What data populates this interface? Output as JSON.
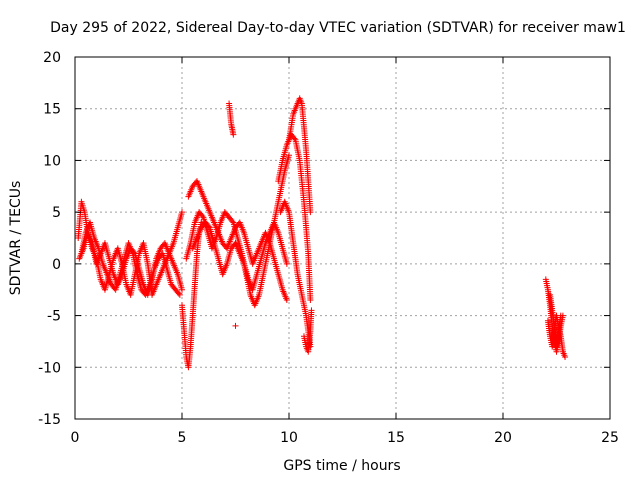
{
  "chart_data": {
    "type": "scatter",
    "title": "Day 295 of 2022, Sidereal Day-to-day VTEC variation (SDTVAR) for receiver maw1",
    "xlabel": "GPS time / hours",
    "ylabel": "SDTVAR / TECUs",
    "xlim": [
      0,
      25
    ],
    "ylim": [
      -15,
      20
    ],
    "xticks": [
      0,
      5,
      10,
      15,
      20,
      25
    ],
    "yticks": [
      -15,
      -10,
      -5,
      0,
      5,
      10,
      15,
      20
    ],
    "xtick_labels": [
      "0",
      "5",
      "10",
      "15",
      "20",
      "25"
    ],
    "ytick_labels": [
      "-15",
      "-10",
      "-5",
      "0",
      "5",
      "10",
      "15",
      "20"
    ],
    "grid": true,
    "marker": "+",
    "color": "#ff0000",
    "series": [
      {
        "name": "maw1",
        "segments": [
          {
            "x": [
              0.15,
              0.3,
              0.45,
              0.6,
              0.8,
              1.0,
              1.2,
              1.4,
              1.6,
              1.8,
              2.0,
              2.2,
              2.4,
              2.6,
              2.8,
              3.0,
              3.2,
              3.4,
              3.6,
              3.8,
              4.0,
              4.2,
              4.4,
              4.6,
              4.8,
              5.0
            ],
            "y": [
              2.5,
              6.0,
              5.0,
              3.0,
              1.5,
              0.5,
              -1.5,
              -2.5,
              -1.0,
              0.5,
              1.5,
              0.0,
              -2.0,
              -3.0,
              -1.0,
              1.0,
              2.0,
              0.0,
              -3.0,
              -2.0,
              -1.0,
              0.0,
              1.0,
              2.0,
              3.5,
              5.0
            ]
          },
          {
            "x": [
              0.2,
              0.4,
              0.6,
              0.8,
              1.0,
              1.2,
              1.4,
              1.6,
              1.8,
              2.0,
              2.2,
              2.4,
              2.6,
              2.8,
              3.0,
              3.2,
              3.4,
              3.6,
              3.8,
              4.0,
              4.2,
              4.4,
              4.6,
              4.8,
              5.0
            ],
            "y": [
              0.5,
              1.5,
              3.0,
              2.0,
              0.0,
              1.0,
              2.0,
              0.5,
              -1.0,
              -2.0,
              -1.0,
              0.5,
              1.5,
              1.0,
              -0.5,
              -2.0,
              -3.0,
              -1.5,
              0.5,
              1.5,
              2.0,
              1.0,
              0.0,
              -1.0,
              -2.5
            ]
          },
          {
            "x": [
              0.3,
              0.5,
              0.7,
              0.9,
              1.1,
              1.3,
              1.5,
              1.7,
              1.9,
              2.1,
              2.3,
              2.5,
              2.7,
              2.9,
              3.1,
              3.3,
              3.5,
              3.7,
              3.9,
              4.1,
              4.3,
              4.5,
              4.7,
              4.9
            ],
            "y": [
              1.0,
              3.0,
              4.0,
              2.5,
              1.5,
              0.0,
              -1.0,
              -2.0,
              -2.5,
              -1.0,
              0.5,
              2.0,
              1.0,
              -1.0,
              -2.5,
              -3.0,
              -2.0,
              -0.5,
              0.5,
              1.0,
              -0.5,
              -2.0,
              -2.5,
              -3.0
            ]
          },
          {
            "x": [
              5.0,
              5.1,
              5.2,
              5.3,
              5.4,
              5.5,
              5.6,
              5.7,
              5.8,
              5.9
            ],
            "y": [
              -4.0,
              -6.5,
              -9.0,
              -10.0,
              -8.0,
              -5.0,
              -2.0,
              1.0,
              3.0,
              4.0
            ]
          },
          {
            "x": [
              5.2,
              5.4,
              5.6,
              5.8,
              6.0,
              6.2,
              6.4,
              6.6,
              6.8,
              7.0,
              7.2,
              7.4,
              7.6,
              7.8,
              8.0,
              8.2,
              8.4,
              8.6,
              8.8,
              9.0,
              9.2,
              9.4,
              9.6,
              9.8,
              10.0
            ],
            "y": [
              0.5,
              2.0,
              4.0,
              5.0,
              4.5,
              3.0,
              1.5,
              2.5,
              4.0,
              5.0,
              4.5,
              4.0,
              2.5,
              1.0,
              -1.0,
              -3.0,
              -4.0,
              -3.0,
              -1.0,
              1.0,
              3.0,
              5.0,
              7.0,
              9.0,
              10.5
            ]
          },
          {
            "x": [
              5.3,
              5.5,
              5.7,
              5.9,
              6.1,
              6.3,
              6.5,
              6.7,
              6.9,
              7.1,
              7.3,
              7.5,
              7.7,
              7.9,
              8.1,
              8.3,
              8.5,
              8.7,
              8.9,
              9.1,
              9.3,
              9.5,
              9.7,
              9.9
            ],
            "y": [
              6.5,
              7.5,
              8.0,
              7.0,
              6.0,
              5.0,
              4.0,
              3.0,
              2.0,
              1.5,
              2.5,
              3.5,
              4.0,
              3.0,
              1.5,
              0.0,
              1.0,
              2.0,
              3.0,
              2.0,
              0.5,
              -1.0,
              -2.5,
              -3.5
            ]
          },
          {
            "x": [
              5.5,
              5.7,
              5.9,
              6.1,
              6.3,
              6.5,
              6.7,
              6.9,
              7.1,
              7.3,
              7.5,
              7.7,
              7.9,
              8.1,
              8.3,
              8.5,
              8.7,
              8.9,
              9.1,
              9.3,
              9.5,
              9.7,
              9.9
            ],
            "y": [
              1.5,
              2.5,
              3.5,
              4.0,
              3.5,
              2.0,
              0.5,
              -1.0,
              0.0,
              1.5,
              2.0,
              1.0,
              0.0,
              -1.5,
              -2.5,
              -1.0,
              0.5,
              2.0,
              3.0,
              4.0,
              3.0,
              1.5,
              0.0
            ]
          },
          {
            "x": [
              7.2,
              7.25,
              7.3,
              7.35,
              7.4
            ],
            "y": [
              15.5,
              14.5,
              13.5,
              13.0,
              12.5
            ]
          },
          {
            "x": [
              7.5
            ],
            "y": [
              -6.0
            ]
          },
          {
            "x": [
              9.5,
              9.7,
              9.9,
              10.1,
              10.3,
              10.5,
              10.7,
              10.9,
              11.0
            ],
            "y": [
              8.0,
              10.0,
              11.5,
              12.5,
              12.0,
              10.0,
              6.0,
              1.0,
              -3.5
            ]
          },
          {
            "x": [
              9.6,
              9.8,
              10.0,
              10.2,
              10.4,
              10.6,
              10.8,
              11.0
            ],
            "y": [
              5.0,
              6.0,
              5.0,
              2.0,
              -1.0,
              -3.0,
              -5.0,
              -8.0
            ]
          },
          {
            "x": [
              10.0,
              10.2,
              10.4,
              10.5,
              10.6,
              10.8,
              11.0
            ],
            "y": [
              12.0,
              14.5,
              15.5,
              16.0,
              15.5,
              11.0,
              5.0
            ]
          },
          {
            "x": [
              10.7,
              10.8,
              10.9,
              11.0,
              11.05
            ],
            "y": [
              -7.0,
              -8.0,
              -8.5,
              -6.5,
              -4.5
            ]
          },
          {
            "x": [
              22.0,
              22.1,
              22.2,
              22.3,
              22.4,
              22.5,
              22.6,
              22.7,
              22.8
            ],
            "y": [
              -1.5,
              -2.5,
              -4.0,
              -6.0,
              -7.5,
              -8.5,
              -7.5,
              -6.0,
              -5.0
            ]
          },
          {
            "x": [
              22.1,
              22.2,
              22.3,
              22.4,
              22.5,
              22.6,
              22.7,
              22.8,
              22.9
            ],
            "y": [
              -5.5,
              -7.0,
              -8.0,
              -6.5,
              -5.0,
              -6.0,
              -7.0,
              -8.5,
              -9.0
            ]
          },
          {
            "x": [
              22.2,
              22.3,
              22.4,
              22.5,
              22.6,
              22.7
            ],
            "y": [
              -3.0,
              -4.5,
              -6.0,
              -8.0,
              -6.5,
              -5.0
            ]
          }
        ]
      }
    ]
  }
}
